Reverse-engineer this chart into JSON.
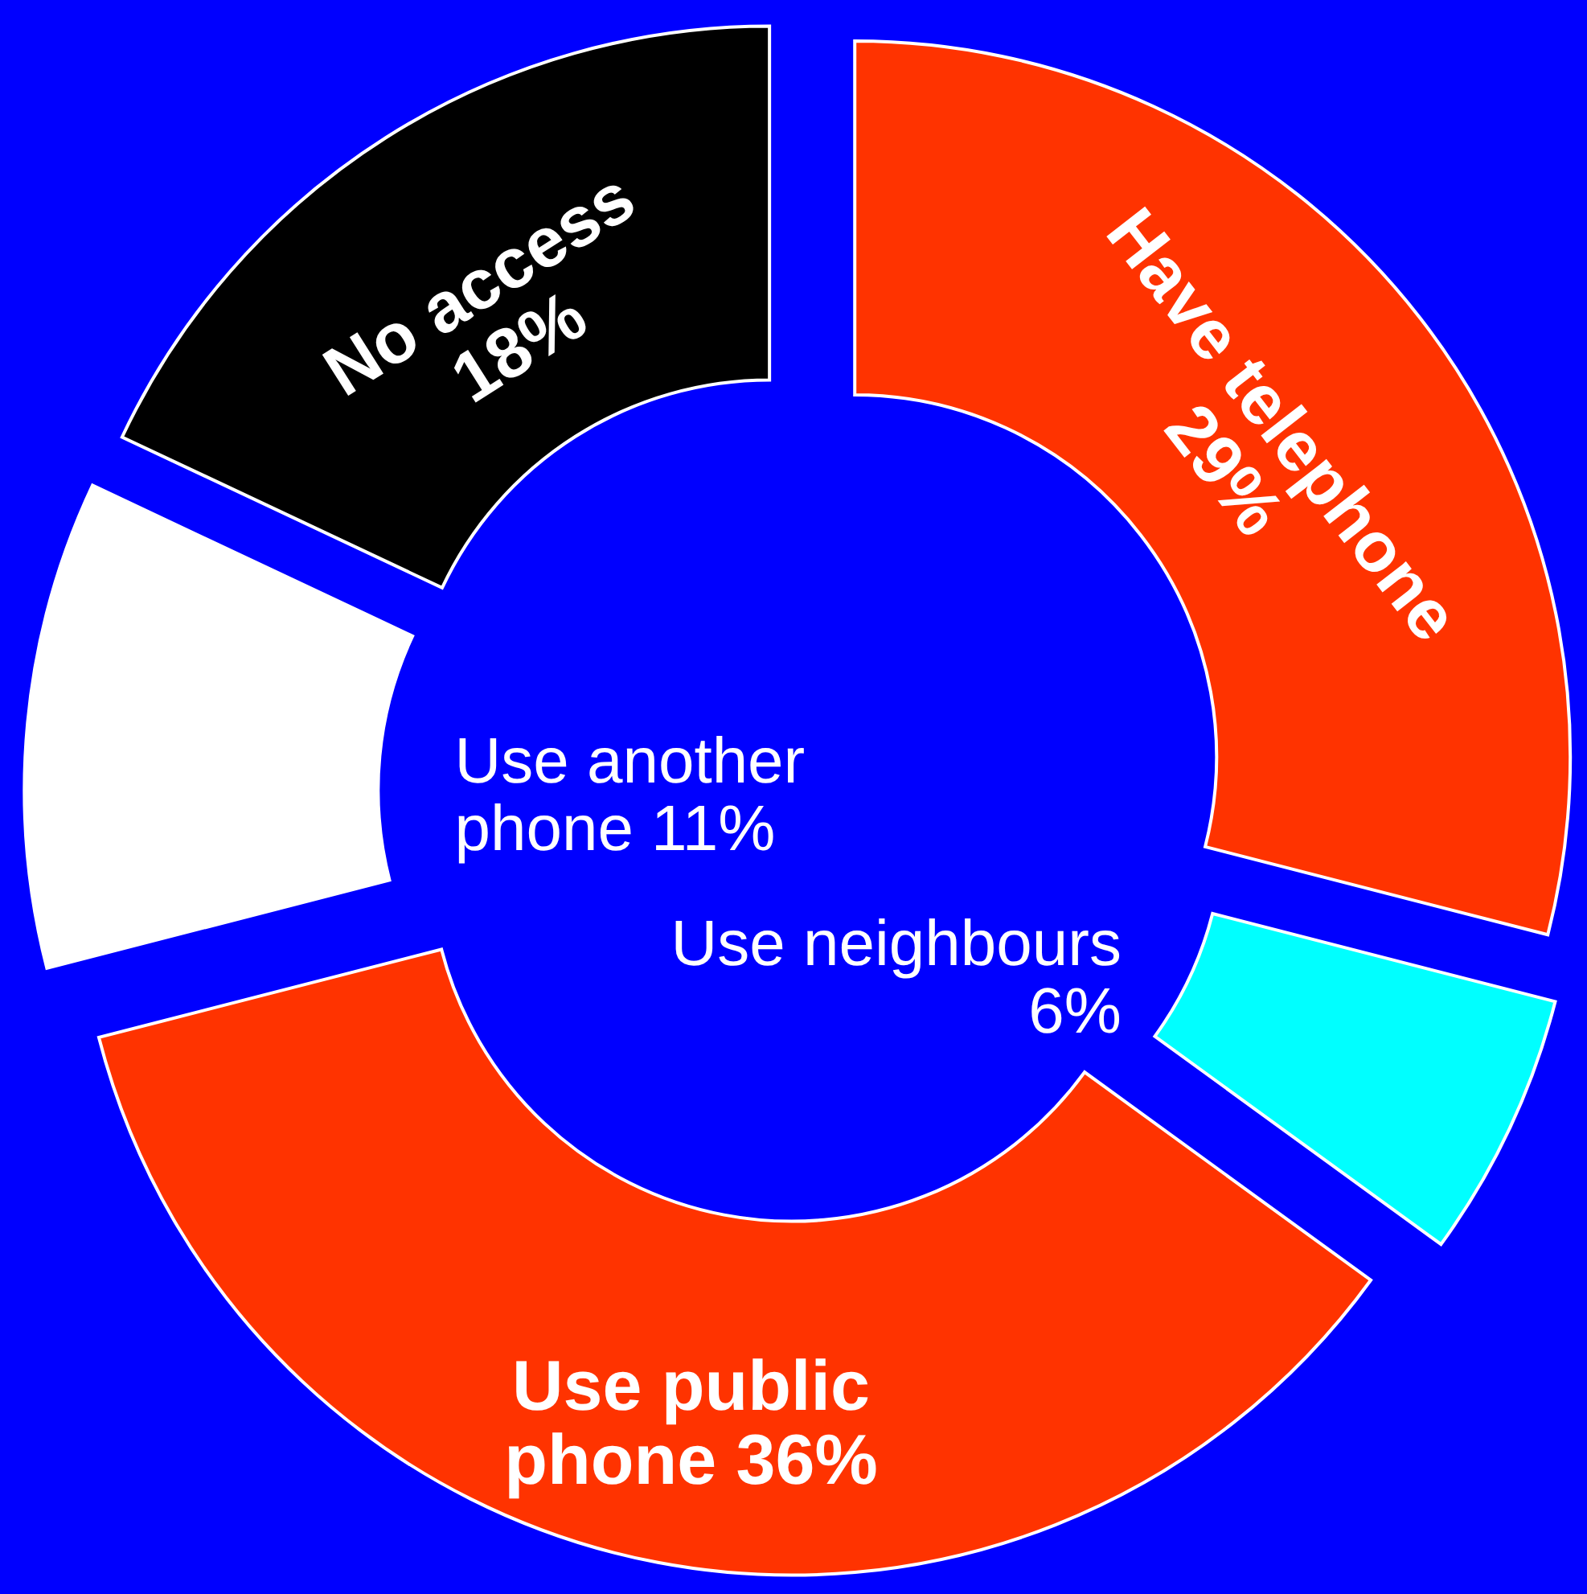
{
  "chart_data": {
    "type": "donut",
    "categories": [
      "Have telephone",
      "Use neighbours",
      "Use public phone",
      "Use another phone",
      "No access"
    ],
    "values": [
      29,
      6,
      36,
      11,
      18
    ],
    "value_labels": [
      "29%",
      "6%",
      "36%",
      "11%",
      "18%"
    ],
    "colors": [
      "#ff3300",
      "#00ffff",
      "#ff3300",
      "#ffffff",
      "#000000"
    ],
    "legend": false
  }
}
